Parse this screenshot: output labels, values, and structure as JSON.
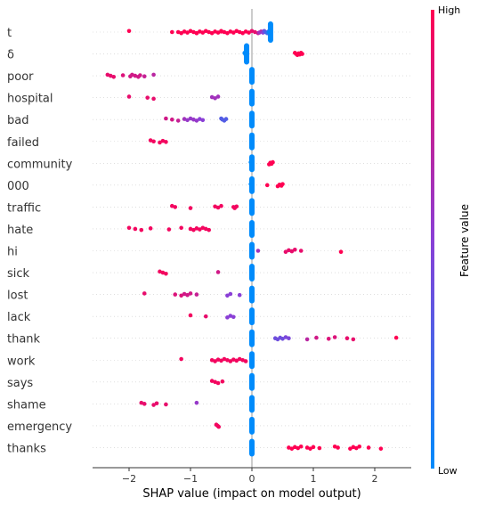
{
  "chart_data": {
    "type": "scatter",
    "title": "",
    "xlabel": "SHAP value (impact on model output)",
    "xlim": [
      -2.6,
      2.6
    ],
    "xticks": [
      -2,
      -1,
      0,
      1,
      2
    ],
    "xtick_labels": [
      "−2",
      "−1",
      "0",
      "1",
      "2"
    ],
    "features": [
      "t",
      "δ",
      "poor",
      "hospital",
      "bad",
      "failed",
      "community",
      "000",
      "traffic",
      "hate",
      "hi",
      "sick",
      "lost",
      "lack",
      "thank",
      "work",
      "says",
      "shame",
      "emergency",
      "thanks"
    ],
    "colorbar": {
      "label": "Feature value",
      "high_label": "High",
      "low_label": "Low",
      "low_color": "#008bfb",
      "high_color": "#ff0052"
    },
    "series": [
      {
        "feature": "t",
        "points": [
          [
            -2.0,
            1
          ],
          [
            -1.2,
            1
          ],
          [
            -1.15,
            1
          ],
          [
            -1.1,
            1
          ],
          [
            -1.05,
            1
          ],
          [
            -1.0,
            1
          ],
          [
            -0.95,
            1
          ],
          [
            -0.9,
            1
          ],
          [
            -0.85,
            1
          ],
          [
            -0.8,
            1
          ],
          [
            -0.75,
            1
          ],
          [
            -0.7,
            1
          ],
          [
            -0.65,
            1
          ],
          [
            -0.6,
            1
          ],
          [
            -0.55,
            1
          ],
          [
            -0.5,
            1
          ],
          [
            -0.45,
            1
          ],
          [
            -0.4,
            1
          ],
          [
            -0.35,
            1
          ],
          [
            -0.3,
            1
          ],
          [
            -0.25,
            1
          ],
          [
            -0.2,
            1
          ],
          [
            -0.15,
            1
          ],
          [
            -0.1,
            1
          ],
          [
            -0.05,
            1
          ],
          [
            0.0,
            0.9
          ],
          [
            0.05,
            0.9
          ],
          [
            0.1,
            0.8
          ],
          [
            0.15,
            0.7
          ],
          [
            0.18,
            0.5
          ],
          [
            0.2,
            0.4
          ],
          [
            0.22,
            0.3
          ],
          [
            0.25,
            0.2
          ],
          [
            0.27,
            0.1
          ],
          [
            0.28,
            0
          ],
          [
            0.3,
            0
          ],
          [
            -1.3,
            1
          ],
          [
            -0.9,
            1
          ],
          [
            -0.5,
            1
          ],
          [
            0.12,
            0.6
          ]
        ]
      },
      {
        "feature": "δ",
        "points": [
          [
            -0.12,
            0
          ],
          [
            -0.11,
            0
          ],
          [
            -0.1,
            0
          ],
          [
            -0.09,
            0
          ],
          [
            -0.08,
            0
          ],
          [
            0.7,
            1
          ],
          [
            0.72,
            1
          ],
          [
            0.74,
            1
          ],
          [
            0.76,
            1
          ],
          [
            0.78,
            1
          ],
          [
            0.8,
            1
          ],
          [
            0.82,
            1
          ]
        ]
      },
      {
        "feature": "poor",
        "points": [
          [
            -2.35,
            0.9
          ],
          [
            -2.3,
            0.9
          ],
          [
            -2.25,
            0.9
          ],
          [
            -2.1,
            0.85
          ],
          [
            -1.98,
            0.8
          ],
          [
            -1.95,
            0.8
          ],
          [
            -1.9,
            0.8
          ],
          [
            -1.85,
            0.8
          ],
          [
            -1.82,
            0.8
          ],
          [
            -1.75,
            0.75
          ],
          [
            -1.6,
            0.7
          ],
          [
            -0.01,
            0
          ]
        ]
      },
      {
        "feature": "hospital",
        "points": [
          [
            -2.0,
            0.9
          ],
          [
            -1.7,
            0.9
          ],
          [
            -1.6,
            0.9
          ],
          [
            -0.65,
            0.6
          ],
          [
            -0.6,
            0.6
          ],
          [
            -0.55,
            0.6
          ],
          [
            -0.01,
            0
          ]
        ]
      },
      {
        "feature": "bad",
        "points": [
          [
            -1.4,
            0.8
          ],
          [
            -1.3,
            0.8
          ],
          [
            -1.2,
            0.75
          ],
          [
            -1.1,
            0.6
          ],
          [
            -1.05,
            0.55
          ],
          [
            -1.0,
            0.55
          ],
          [
            -0.95,
            0.55
          ],
          [
            -0.9,
            0.55
          ],
          [
            -0.85,
            0.5
          ],
          [
            -0.8,
            0.5
          ],
          [
            -0.5,
            0.3
          ],
          [
            -0.48,
            0.3
          ],
          [
            -0.45,
            0.3
          ],
          [
            -0.42,
            0.3
          ],
          [
            -0.01,
            0
          ]
        ]
      },
      {
        "feature": "failed",
        "points": [
          [
            -1.65,
            0.95
          ],
          [
            -1.6,
            0.95
          ],
          [
            -1.5,
            0.95
          ],
          [
            -1.45,
            0.95
          ],
          [
            -1.4,
            0.95
          ],
          [
            -0.01,
            0
          ]
        ]
      },
      {
        "feature": "community",
        "points": [
          [
            -0.02,
            0
          ],
          [
            -0.01,
            0
          ],
          [
            0.28,
            1
          ],
          [
            0.3,
            1
          ],
          [
            0.32,
            1
          ],
          [
            0.34,
            1
          ]
        ]
      },
      {
        "feature": "000",
        "points": [
          [
            -0.02,
            0
          ],
          [
            0.25,
            1
          ],
          [
            0.42,
            1
          ],
          [
            0.45,
            1
          ],
          [
            0.48,
            1
          ],
          [
            0.5,
            1
          ]
        ]
      },
      {
        "feature": "traffic",
        "points": [
          [
            -1.3,
            0.95
          ],
          [
            -1.25,
            0.95
          ],
          [
            -1.0,
            0.95
          ],
          [
            -0.6,
            0.95
          ],
          [
            -0.55,
            0.95
          ],
          [
            -0.5,
            0.95
          ],
          [
            -0.3,
            0.95
          ],
          [
            -0.28,
            0.95
          ],
          [
            -0.25,
            0.95
          ],
          [
            -0.01,
            0
          ]
        ]
      },
      {
        "feature": "hate",
        "points": [
          [
            -2.0,
            0.95
          ],
          [
            -1.9,
            0.95
          ],
          [
            -1.8,
            0.95
          ],
          [
            -1.65,
            0.95
          ],
          [
            -1.35,
            0.95
          ],
          [
            -1.15,
            0.95
          ],
          [
            -1.0,
            0.95
          ],
          [
            -0.95,
            0.95
          ],
          [
            -0.9,
            0.95
          ],
          [
            -0.85,
            0.95
          ],
          [
            -0.8,
            0.95
          ],
          [
            -0.75,
            0.95
          ],
          [
            -0.7,
            0.95
          ],
          [
            -0.01,
            0
          ]
        ]
      },
      {
        "feature": "hi",
        "points": [
          [
            -0.01,
            0
          ],
          [
            0.1,
            0.6
          ],
          [
            0.55,
            0.9
          ],
          [
            0.6,
            0.9
          ],
          [
            0.65,
            0.9
          ],
          [
            0.7,
            0.9
          ],
          [
            0.8,
            0.9
          ],
          [
            1.45,
            1
          ]
        ]
      },
      {
        "feature": "sick",
        "points": [
          [
            -1.5,
            0.95
          ],
          [
            -1.45,
            0.95
          ],
          [
            -1.4,
            0.95
          ],
          [
            -0.55,
            0.8
          ],
          [
            -0.01,
            0
          ]
        ]
      },
      {
        "feature": "lost",
        "points": [
          [
            -1.75,
            0.9
          ],
          [
            -1.25,
            0.85
          ],
          [
            -1.15,
            0.85
          ],
          [
            -1.1,
            0.8
          ],
          [
            -1.05,
            0.8
          ],
          [
            -1.0,
            0.8
          ],
          [
            -0.9,
            0.75
          ],
          [
            -0.4,
            0.5
          ],
          [
            -0.35,
            0.5
          ],
          [
            -0.2,
            0.5
          ],
          [
            -0.01,
            0
          ]
        ]
      },
      {
        "feature": "lack",
        "points": [
          [
            -1.0,
            0.95
          ],
          [
            -0.75,
            0.9
          ],
          [
            -0.4,
            0.5
          ],
          [
            -0.35,
            0.5
          ],
          [
            -0.3,
            0.5
          ],
          [
            -0.01,
            0
          ]
        ]
      },
      {
        "feature": "thank",
        "points": [
          [
            -0.01,
            0
          ],
          [
            0.38,
            0.4
          ],
          [
            0.42,
            0.4
          ],
          [
            0.46,
            0.4
          ],
          [
            0.5,
            0.4
          ],
          [
            0.55,
            0.45
          ],
          [
            0.6,
            0.45
          ],
          [
            0.9,
            0.7
          ],
          [
            1.05,
            0.8
          ],
          [
            1.25,
            0.85
          ],
          [
            1.35,
            0.85
          ],
          [
            1.55,
            0.9
          ],
          [
            1.65,
            0.9
          ],
          [
            2.35,
            1
          ]
        ]
      },
      {
        "feature": "work",
        "points": [
          [
            -1.15,
            0.95
          ],
          [
            -0.65,
            0.95
          ],
          [
            -0.6,
            0.95
          ],
          [
            -0.55,
            0.95
          ],
          [
            -0.5,
            0.95
          ],
          [
            -0.45,
            0.95
          ],
          [
            -0.4,
            0.95
          ],
          [
            -0.35,
            0.95
          ],
          [
            -0.3,
            0.95
          ],
          [
            -0.25,
            0.95
          ],
          [
            -0.2,
            0.95
          ],
          [
            -0.15,
            0.95
          ],
          [
            -0.1,
            0.95
          ],
          [
            -0.01,
            0
          ]
        ]
      },
      {
        "feature": "says",
        "points": [
          [
            -0.65,
            0.95
          ],
          [
            -0.6,
            0.95
          ],
          [
            -0.55,
            0.95
          ],
          [
            -0.48,
            0.95
          ],
          [
            -0.01,
            0
          ]
        ]
      },
      {
        "feature": "shame",
        "points": [
          [
            -1.8,
            0.9
          ],
          [
            -1.75,
            0.9
          ],
          [
            -1.6,
            0.9
          ],
          [
            -1.55,
            0.9
          ],
          [
            -1.4,
            0.9
          ],
          [
            -0.9,
            0.55
          ],
          [
            -0.01,
            0
          ]
        ]
      },
      {
        "feature": "emergency",
        "points": [
          [
            -0.58,
            0.95
          ],
          [
            -0.56,
            0.95
          ],
          [
            -0.54,
            0.95
          ],
          [
            -0.01,
            0
          ]
        ]
      },
      {
        "feature": "thanks",
        "points": [
          [
            -0.01,
            0
          ],
          [
            0.6,
            1
          ],
          [
            0.65,
            1
          ],
          [
            0.7,
            1
          ],
          [
            0.75,
            1
          ],
          [
            0.8,
            1
          ],
          [
            0.9,
            1
          ],
          [
            0.95,
            1
          ],
          [
            1.0,
            1
          ],
          [
            1.1,
            1
          ],
          [
            1.35,
            1
          ],
          [
            1.4,
            1
          ],
          [
            1.6,
            1
          ],
          [
            1.65,
            1
          ],
          [
            1.7,
            1
          ],
          [
            1.75,
            1
          ],
          [
            1.9,
            1
          ],
          [
            2.1,
            1
          ]
        ]
      }
    ]
  }
}
